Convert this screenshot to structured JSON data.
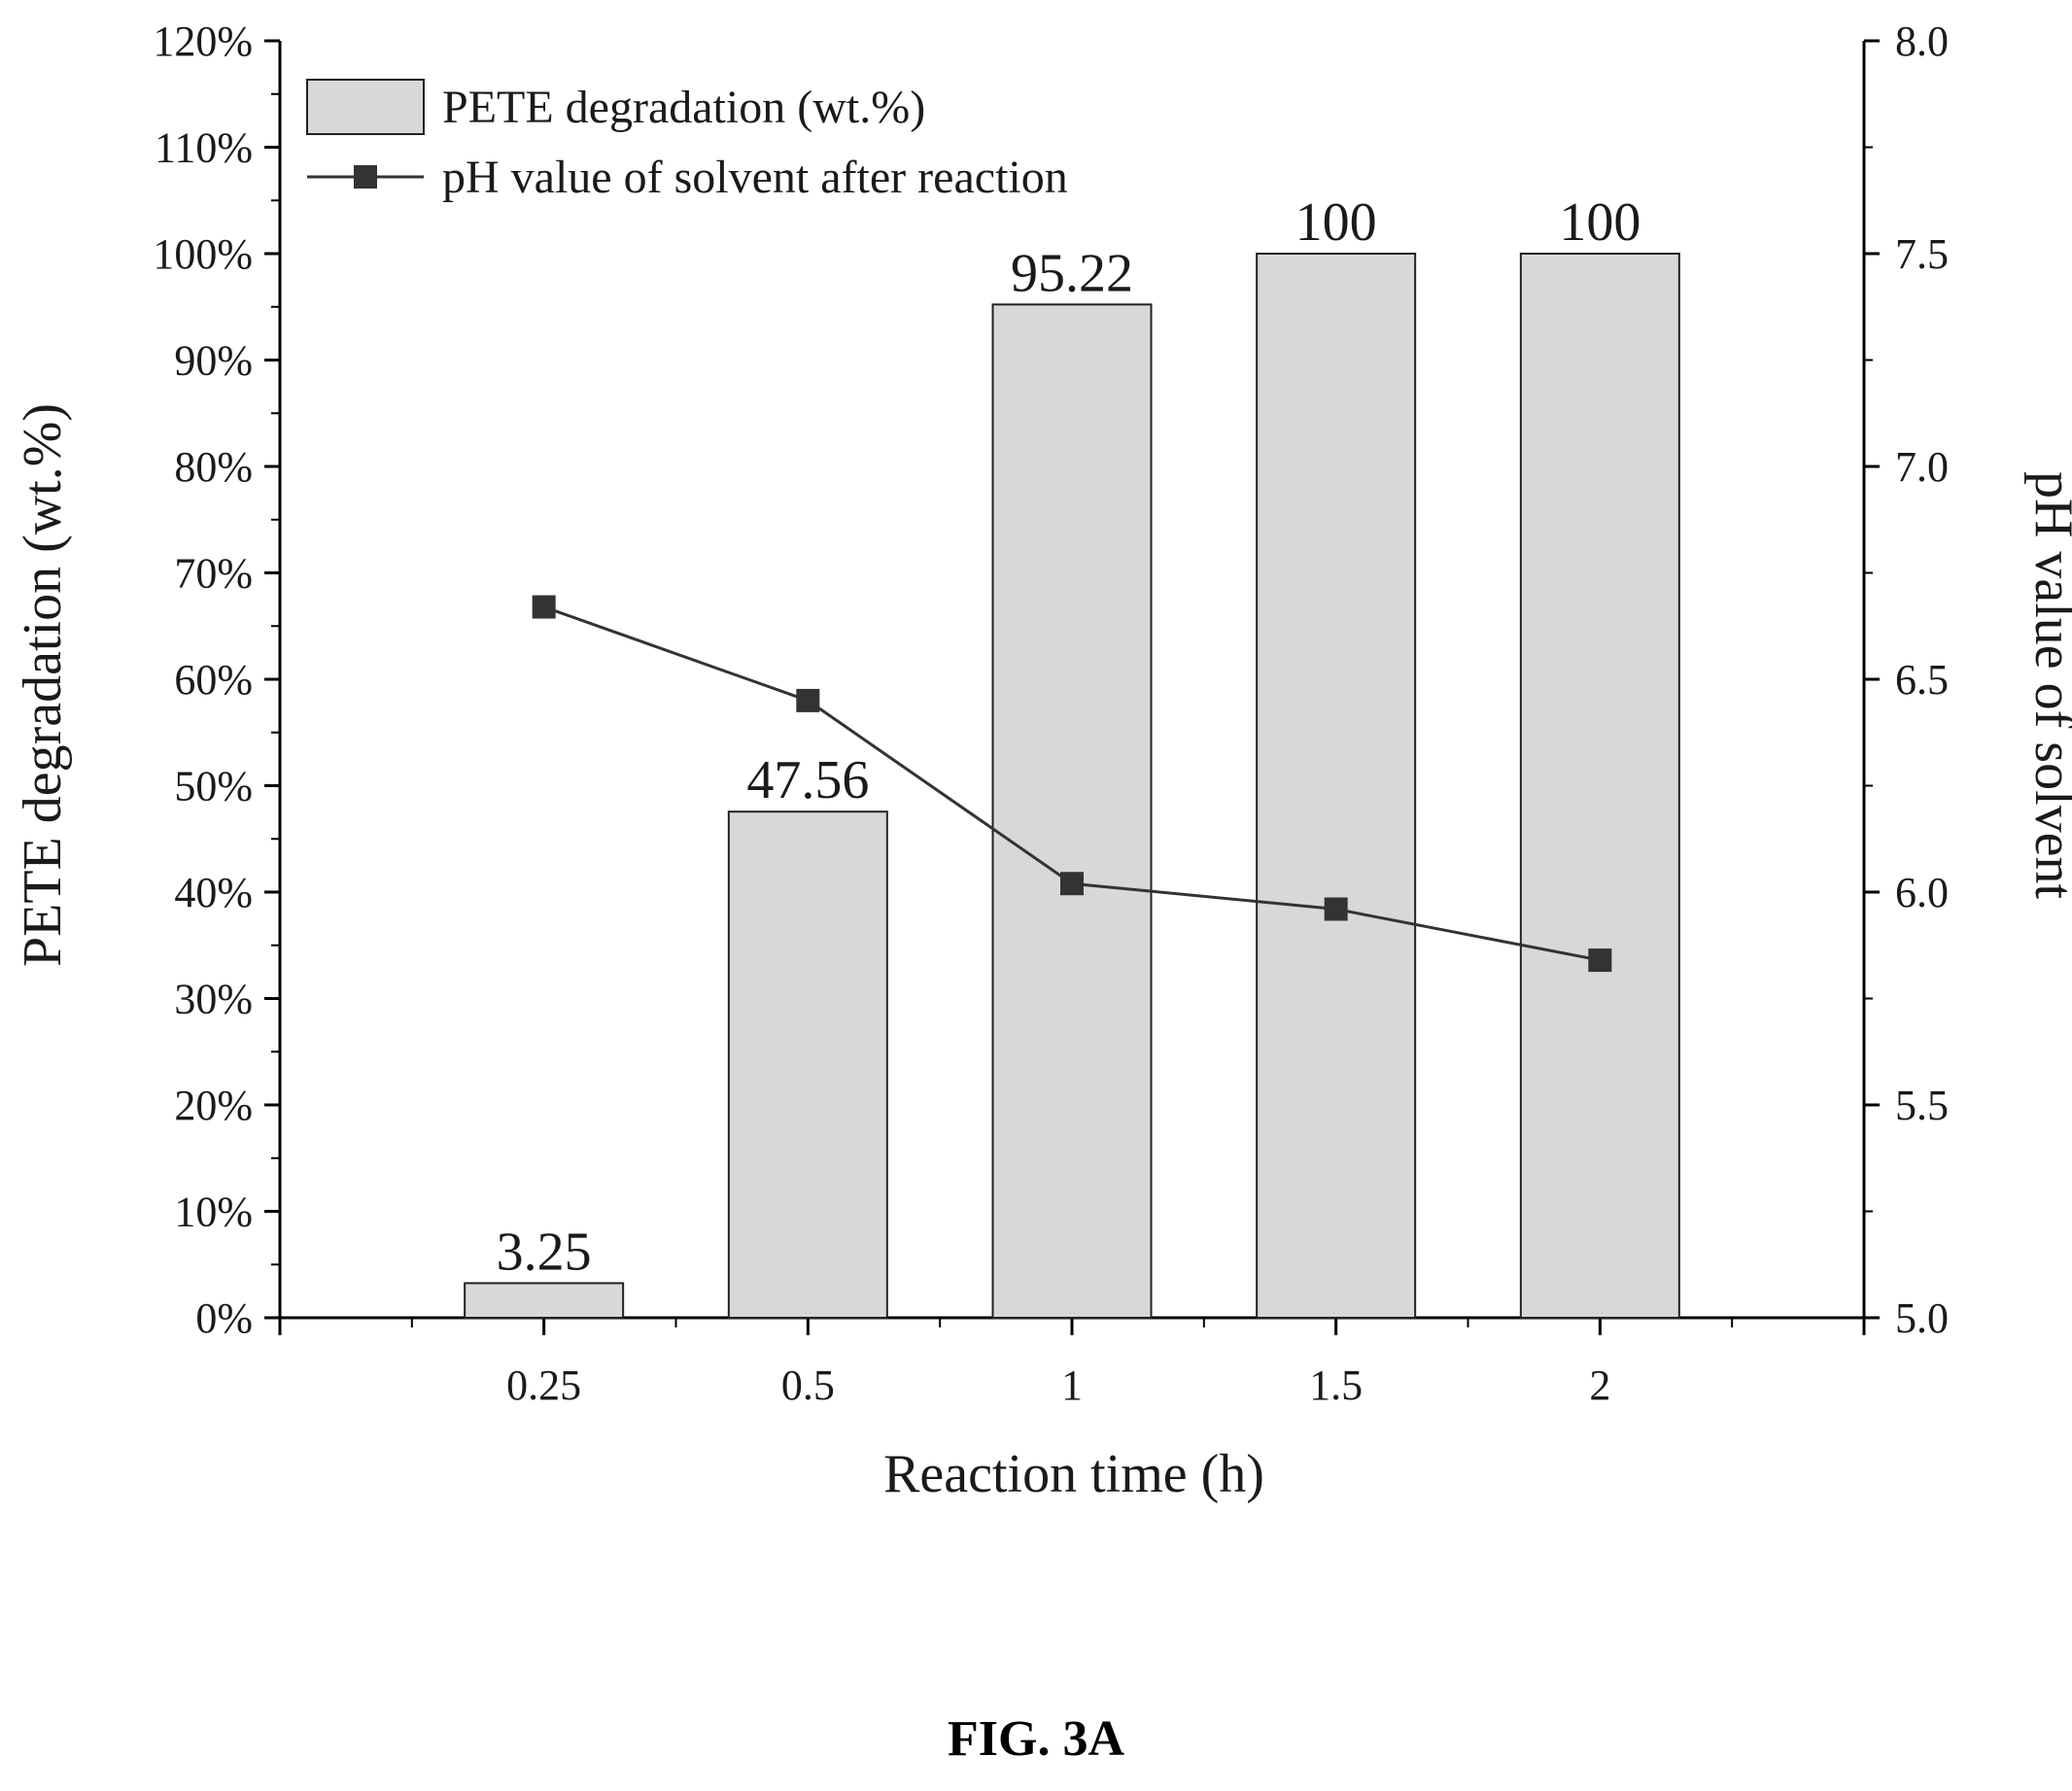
{
  "figure_caption": "FIG. 3A",
  "chart_data": {
    "type": "bar",
    "categories": [
      "0.25",
      "0.5",
      "1",
      "1.5",
      "2"
    ],
    "xlabel": "Reaction time (h)",
    "ylabel": "PETE degradation (wt.%)",
    "y2label": "pH value of solvent",
    "ylim": [
      0,
      120
    ],
    "y2lim": [
      5.0,
      8.0
    ],
    "yticks": [
      "0%",
      "10%",
      "20%",
      "30%",
      "40%",
      "50%",
      "60%",
      "70%",
      "80%",
      "90%",
      "100%",
      "110%",
      "120%"
    ],
    "y2ticks": [
      "5.0",
      "5.5",
      "6.0",
      "6.5",
      "7.0",
      "7.5",
      "8.0"
    ],
    "legend_position": "top-left",
    "grid": false,
    "series": [
      {
        "name": "PETE degradation (wt.%)",
        "type": "bar",
        "axis": "left",
        "values": [
          3.25,
          47.56,
          95.22,
          100,
          100
        ],
        "data_labels": [
          "3.25",
          "47.56",
          "95.22",
          "100",
          "100"
        ],
        "color": "#d8d8d8"
      },
      {
        "name": "pH value of solvent after reaction",
        "type": "line",
        "axis": "right",
        "marker": "square",
        "values": [
          6.67,
          6.45,
          6.02,
          5.96,
          5.84
        ],
        "color": "#333333"
      }
    ]
  }
}
